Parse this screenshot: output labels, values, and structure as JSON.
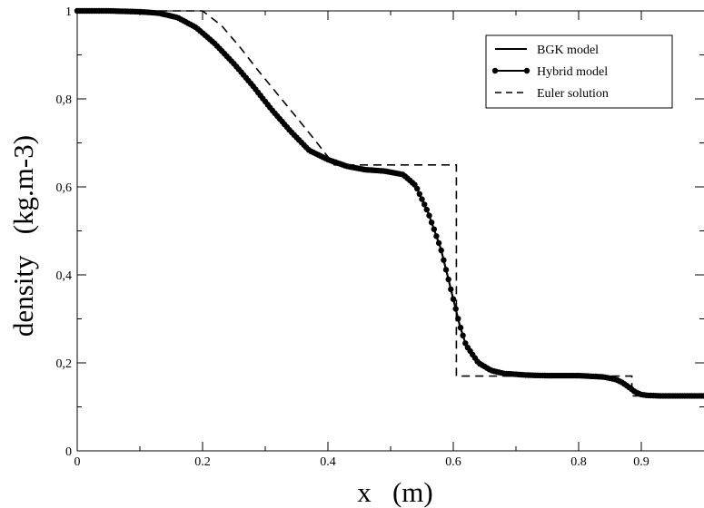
{
  "chart_data": {
    "type": "line",
    "xlabel": "x   (m)",
    "ylabel": "density   (kg.m-3)",
    "xlim": [
      0,
      1.0
    ],
    "ylim": [
      0,
      1
    ],
    "x_ticks": [
      {
        "value": 0,
        "label": "0"
      },
      {
        "value": 0.2,
        "label": "0.2"
      },
      {
        "value": 0.4,
        "label": "0.4"
      },
      {
        "value": 0.6,
        "label": "0.6"
      },
      {
        "value": 0.8,
        "label": "0.8"
      },
      {
        "value": 0.9,
        "label": "0.9"
      }
    ],
    "y_ticks": [
      {
        "value": 0,
        "label": "0"
      },
      {
        "value": 0.2,
        "label": "0,2"
      },
      {
        "value": 0.4,
        "label": "0,4"
      },
      {
        "value": 0.6,
        "label": "0,6"
      },
      {
        "value": 0.8,
        "label": "0,8"
      },
      {
        "value": 1,
        "label": "1"
      }
    ],
    "legend_position": "top-right",
    "grid": false,
    "series": [
      {
        "name": "BGK model",
        "style": "solid",
        "color": "#000000",
        "x": [
          0,
          0.05,
          0.1,
          0.13,
          0.16,
          0.19,
          0.22,
          0.25,
          0.28,
          0.31,
          0.34,
          0.37,
          0.4,
          0.43,
          0.46,
          0.49,
          0.52,
          0.54,
          0.56,
          0.58,
          0.59,
          0.6,
          0.61,
          0.62,
          0.64,
          0.66,
          0.68,
          0.7,
          0.72,
          0.75,
          0.8,
          0.84,
          0.86,
          0.87,
          0.88,
          0.89,
          0.9,
          0.91,
          0.93,
          0.96,
          1.0
        ],
        "y": [
          1.0,
          1.0,
          0.998,
          0.995,
          0.985,
          0.962,
          0.925,
          0.88,
          0.83,
          0.776,
          0.727,
          0.683,
          0.662,
          0.647,
          0.639,
          0.636,
          0.628,
          0.603,
          0.541,
          0.46,
          0.403,
          0.345,
          0.287,
          0.241,
          0.2,
          0.183,
          0.176,
          0.174,
          0.172,
          0.171,
          0.171,
          0.168,
          0.162,
          0.155,
          0.145,
          0.134,
          0.128,
          0.126,
          0.125,
          0.125,
          0.125
        ]
      },
      {
        "name": "Hybrid model",
        "style": "solid-markers",
        "color": "#000000",
        "x": [
          0,
          0.05,
          0.1,
          0.13,
          0.16,
          0.19,
          0.22,
          0.25,
          0.28,
          0.31,
          0.34,
          0.37,
          0.4,
          0.43,
          0.46,
          0.49,
          0.52,
          0.54,
          0.56,
          0.58,
          0.59,
          0.6,
          0.61,
          0.62,
          0.64,
          0.66,
          0.68,
          0.7,
          0.72,
          0.75,
          0.8,
          0.84,
          0.86,
          0.87,
          0.88,
          0.89,
          0.9,
          0.91,
          0.93,
          0.96,
          1.0
        ],
        "y": [
          1.0,
          1.0,
          0.998,
          0.995,
          0.985,
          0.962,
          0.925,
          0.88,
          0.83,
          0.776,
          0.727,
          0.683,
          0.662,
          0.647,
          0.639,
          0.636,
          0.628,
          0.603,
          0.541,
          0.46,
          0.403,
          0.345,
          0.287,
          0.241,
          0.2,
          0.183,
          0.176,
          0.174,
          0.172,
          0.171,
          0.171,
          0.168,
          0.162,
          0.155,
          0.145,
          0.134,
          0.128,
          0.126,
          0.125,
          0.125,
          0.125
        ]
      },
      {
        "name": "Euler solution",
        "style": "dashed",
        "color": "#000000",
        "x": [
          0,
          0.2,
          0.23,
          0.26,
          0.29,
          0.32,
          0.35,
          0.38,
          0.41,
          0.605,
          0.605,
          0.61,
          0.885,
          0.885,
          1.0
        ],
        "y": [
          1.0,
          1.0,
          0.967,
          0.917,
          0.862,
          0.81,
          0.758,
          0.705,
          0.65,
          0.65,
          0.17,
          0.17,
          0.17,
          0.125,
          0.125
        ]
      }
    ]
  }
}
